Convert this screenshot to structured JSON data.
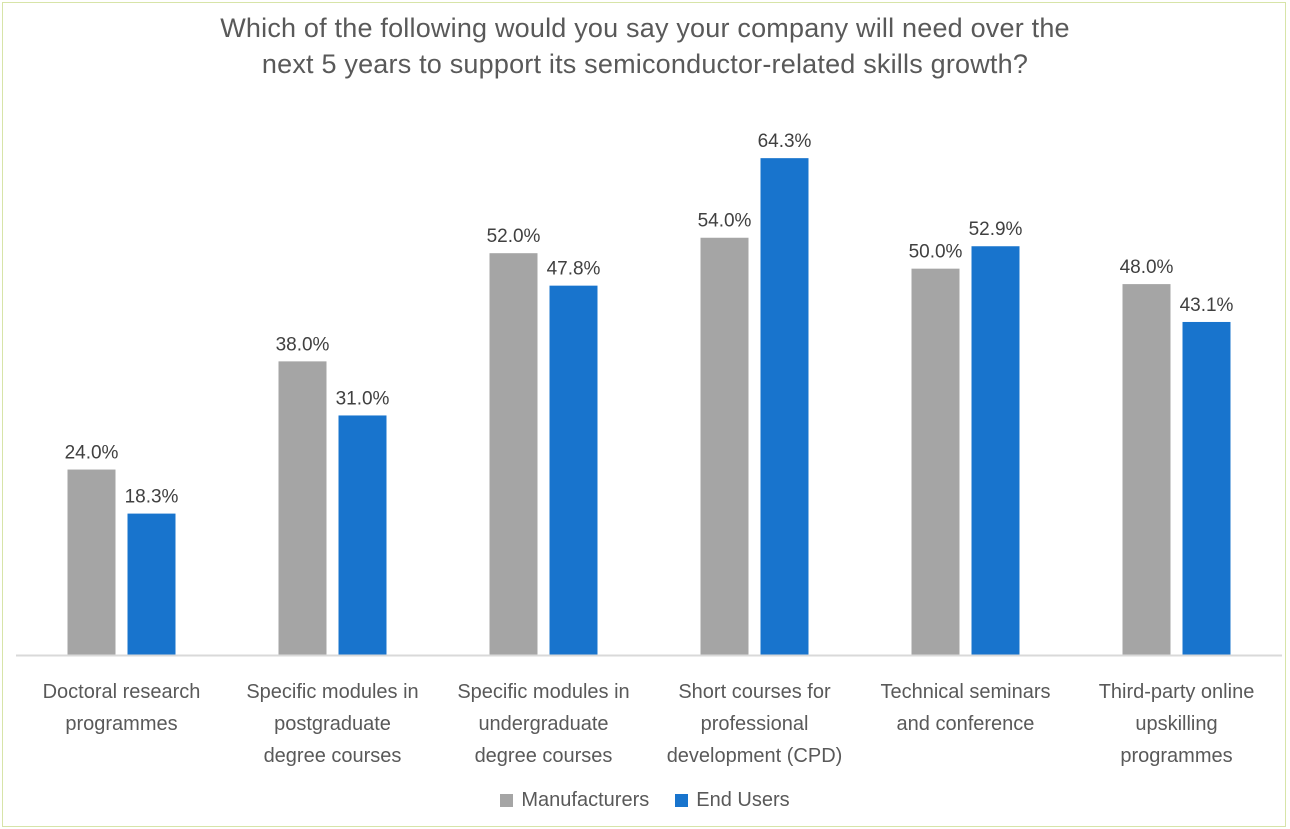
{
  "chart_data": {
    "type": "bar",
    "title_lines": [
      "Which of the following would you say your company will need over the",
      "next 5 years to support its semiconductor-related skills growth?"
    ],
    "categories": [
      [
        "Doctoral research",
        "programmes"
      ],
      [
        "Specific modules in",
        "postgraduate",
        "degree courses"
      ],
      [
        "Specific modules in",
        "undergraduate",
        "degree courses"
      ],
      [
        "Short courses for",
        "professional",
        "development (CPD)"
      ],
      [
        "Technical seminars",
        "and conference"
      ],
      [
        "Third-party online",
        "upskilling",
        "programmes"
      ]
    ],
    "series": [
      {
        "name": "Manufacturers",
        "values": [
          24.0,
          38.0,
          52.0,
          54.0,
          50.0,
          48.0
        ],
        "labels": [
          "24.0%",
          "38.0%",
          "52.0%",
          "54.0%",
          "50.0%",
          "48.0%"
        ]
      },
      {
        "name": "End Users",
        "values": [
          18.3,
          31.0,
          47.8,
          64.3,
          52.9,
          43.1
        ],
        "labels": [
          "18.3%",
          "31.0%",
          "47.8%",
          "64.3%",
          "52.9%",
          "43.1%"
        ]
      }
    ],
    "ylim": [
      0,
      70
    ],
    "grid": false,
    "legend_position": "bottom",
    "colors": {
      "Manufacturers": "#a5a5a5",
      "End Users": "#1874cd"
    }
  }
}
